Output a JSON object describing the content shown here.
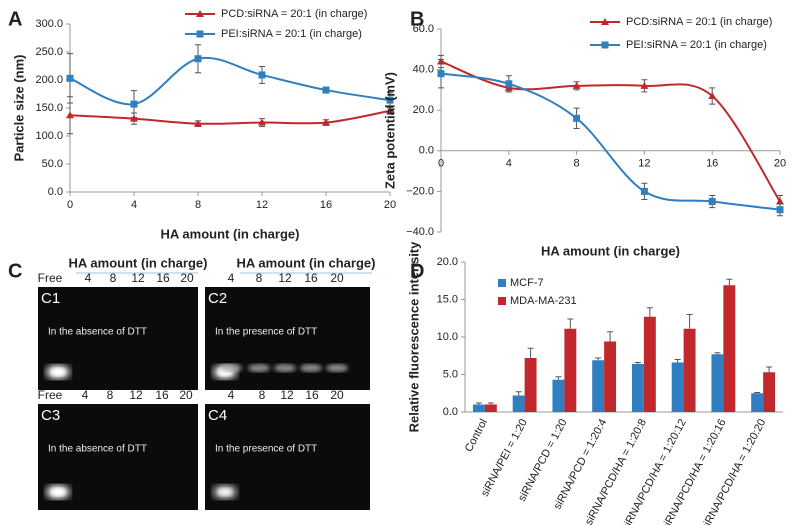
{
  "chart_data": [
    {
      "type": "line",
      "panel_label": "A",
      "xlabel": "HA amount (in charge)",
      "ylabel": "Particle size (nm)",
      "x": [
        0,
        4,
        8,
        12,
        16,
        20
      ],
      "xlim": [
        0,
        20
      ],
      "xticks": [
        0,
        4,
        8,
        12,
        16,
        20
      ],
      "ylim": [
        0,
        300
      ],
      "yticks": [
        {
          "value": 0,
          "label": "0.0"
        },
        {
          "value": 50,
          "label": "50.0"
        },
        {
          "value": 100,
          "label": "100.0"
        },
        {
          "value": 150,
          "label": "150.0"
        },
        {
          "value": 200,
          "label": "200.0"
        },
        {
          "value": 250,
          "label": "250.0"
        },
        {
          "value": 300,
          "label": "300.0"
        }
      ],
      "legend": "upper center",
      "grid": false,
      "series": [
        {
          "name": "PCD:siRNA = 20:1 (in charge)",
          "color": "#c0282d",
          "marker": "triangle",
          "values": [
            137,
            131,
            122,
            124,
            124,
            145
          ],
          "errors": [
            33,
            10,
            5,
            7,
            5,
            6
          ]
        },
        {
          "name": "PEI:siRNA = 20:1 (in charge)",
          "color": "#2f7fc1",
          "marker": "square",
          "values": [
            203,
            157,
            238,
            209,
            182,
            164
          ],
          "errors": [
            44,
            24,
            25,
            15,
            3,
            14
          ]
        }
      ]
    },
    {
      "type": "line",
      "panel_label": "B",
      "xlabel": "HA amount (in charge)",
      "ylabel": "Zeta potential (mV)",
      "x": [
        0,
        4,
        8,
        12,
        16,
        20
      ],
      "xlim": [
        0,
        20
      ],
      "xticks": [
        0,
        4,
        8,
        12,
        16,
        20
      ],
      "ylim": [
        -40,
        60
      ],
      "yticks": [
        {
          "value": -40,
          "label": "−40.0"
        },
        {
          "value": -20,
          "label": "−20.0"
        },
        {
          "value": 0,
          "label": "0.0"
        },
        {
          "value": 20,
          "label": "20.0"
        },
        {
          "value": 40,
          "label": "40.0"
        },
        {
          "value": 60,
          "label": "60.0"
        }
      ],
      "legend": "upper right",
      "grid": false,
      "series": [
        {
          "name": "PCD:siRNA = 20:1 (in charge)",
          "color": "#c0282d",
          "marker": "triangle",
          "values": [
            44,
            31,
            32,
            32,
            27,
            -25
          ],
          "errors": [
            3,
            2,
            2,
            3,
            4,
            3
          ]
        },
        {
          "name": "PEI:siRNA = 20:1 (in charge)",
          "color": "#2f7fc1",
          "marker": "square",
          "values": [
            38,
            33,
            16,
            -20,
            -25,
            -29
          ],
          "errors": [
            7,
            4,
            5,
            4,
            3,
            3
          ]
        }
      ]
    },
    {
      "type": "bar",
      "panel_label": "D",
      "ylabel": "Relative fluorescence intensity",
      "categories": [
        "Control",
        "siRNA/PEI = 1:20",
        "siRNA/PCD = 1:20",
        "siRNA/PCD = 1:20:4",
        "siRNA/PCD/HA = 1:20:8",
        "siRNA/PCD/HA = 1:20:12",
        "siRNA/PCD/HA = 1:20:16",
        "siRNA/PCD/HA = 1:20:20"
      ],
      "ylim": [
        0,
        20
      ],
      "yticks": [
        {
          "value": 0,
          "label": "0.0"
        },
        {
          "value": 5,
          "label": "5.0"
        },
        {
          "value": 10,
          "label": "10.0"
        },
        {
          "value": 15,
          "label": "15.0"
        },
        {
          "value": 20,
          "label": "20.0"
        }
      ],
      "legend": "upper left",
      "grid": false,
      "series": [
        {
          "name": "MCF-7",
          "color": "#2f7fc1",
          "values": [
            1.0,
            2.2,
            4.3,
            6.9,
            6.4,
            6.6,
            7.7,
            2.5
          ],
          "errors": [
            0.2,
            0.5,
            0.4,
            0.3,
            0.2,
            0.4,
            0.2,
            0.1
          ]
        },
        {
          "name": "MDA-MA-231",
          "color": "#c0282d",
          "values": [
            1.0,
            7.2,
            11.1,
            9.4,
            12.7,
            11.1,
            16.9,
            5.3
          ],
          "errors": [
            0.2,
            1.3,
            1.3,
            1.3,
            1.2,
            1.9,
            0.8,
            0.7
          ]
        }
      ]
    }
  ],
  "gels": {
    "panel_label": "C",
    "header": "HA amount (in charge)",
    "panels": [
      {
        "id": "C1",
        "lanes": [
          "Free",
          "4",
          "8",
          "12",
          "16",
          "20"
        ],
        "note": "In the absence of DTT"
      },
      {
        "id": "C2",
        "lanes": [
          "4",
          "8",
          "12",
          "16",
          "20"
        ],
        "note": "In the presence of DTT"
      },
      {
        "id": "C3",
        "lanes": [
          "Free",
          "4",
          "8",
          "12",
          "16",
          "20"
        ],
        "note": "In the absence of DTT"
      },
      {
        "id": "C4",
        "lanes": [
          "4",
          "8",
          "12",
          "16",
          "20"
        ],
        "note": "In the presence of DTT"
      }
    ]
  }
}
